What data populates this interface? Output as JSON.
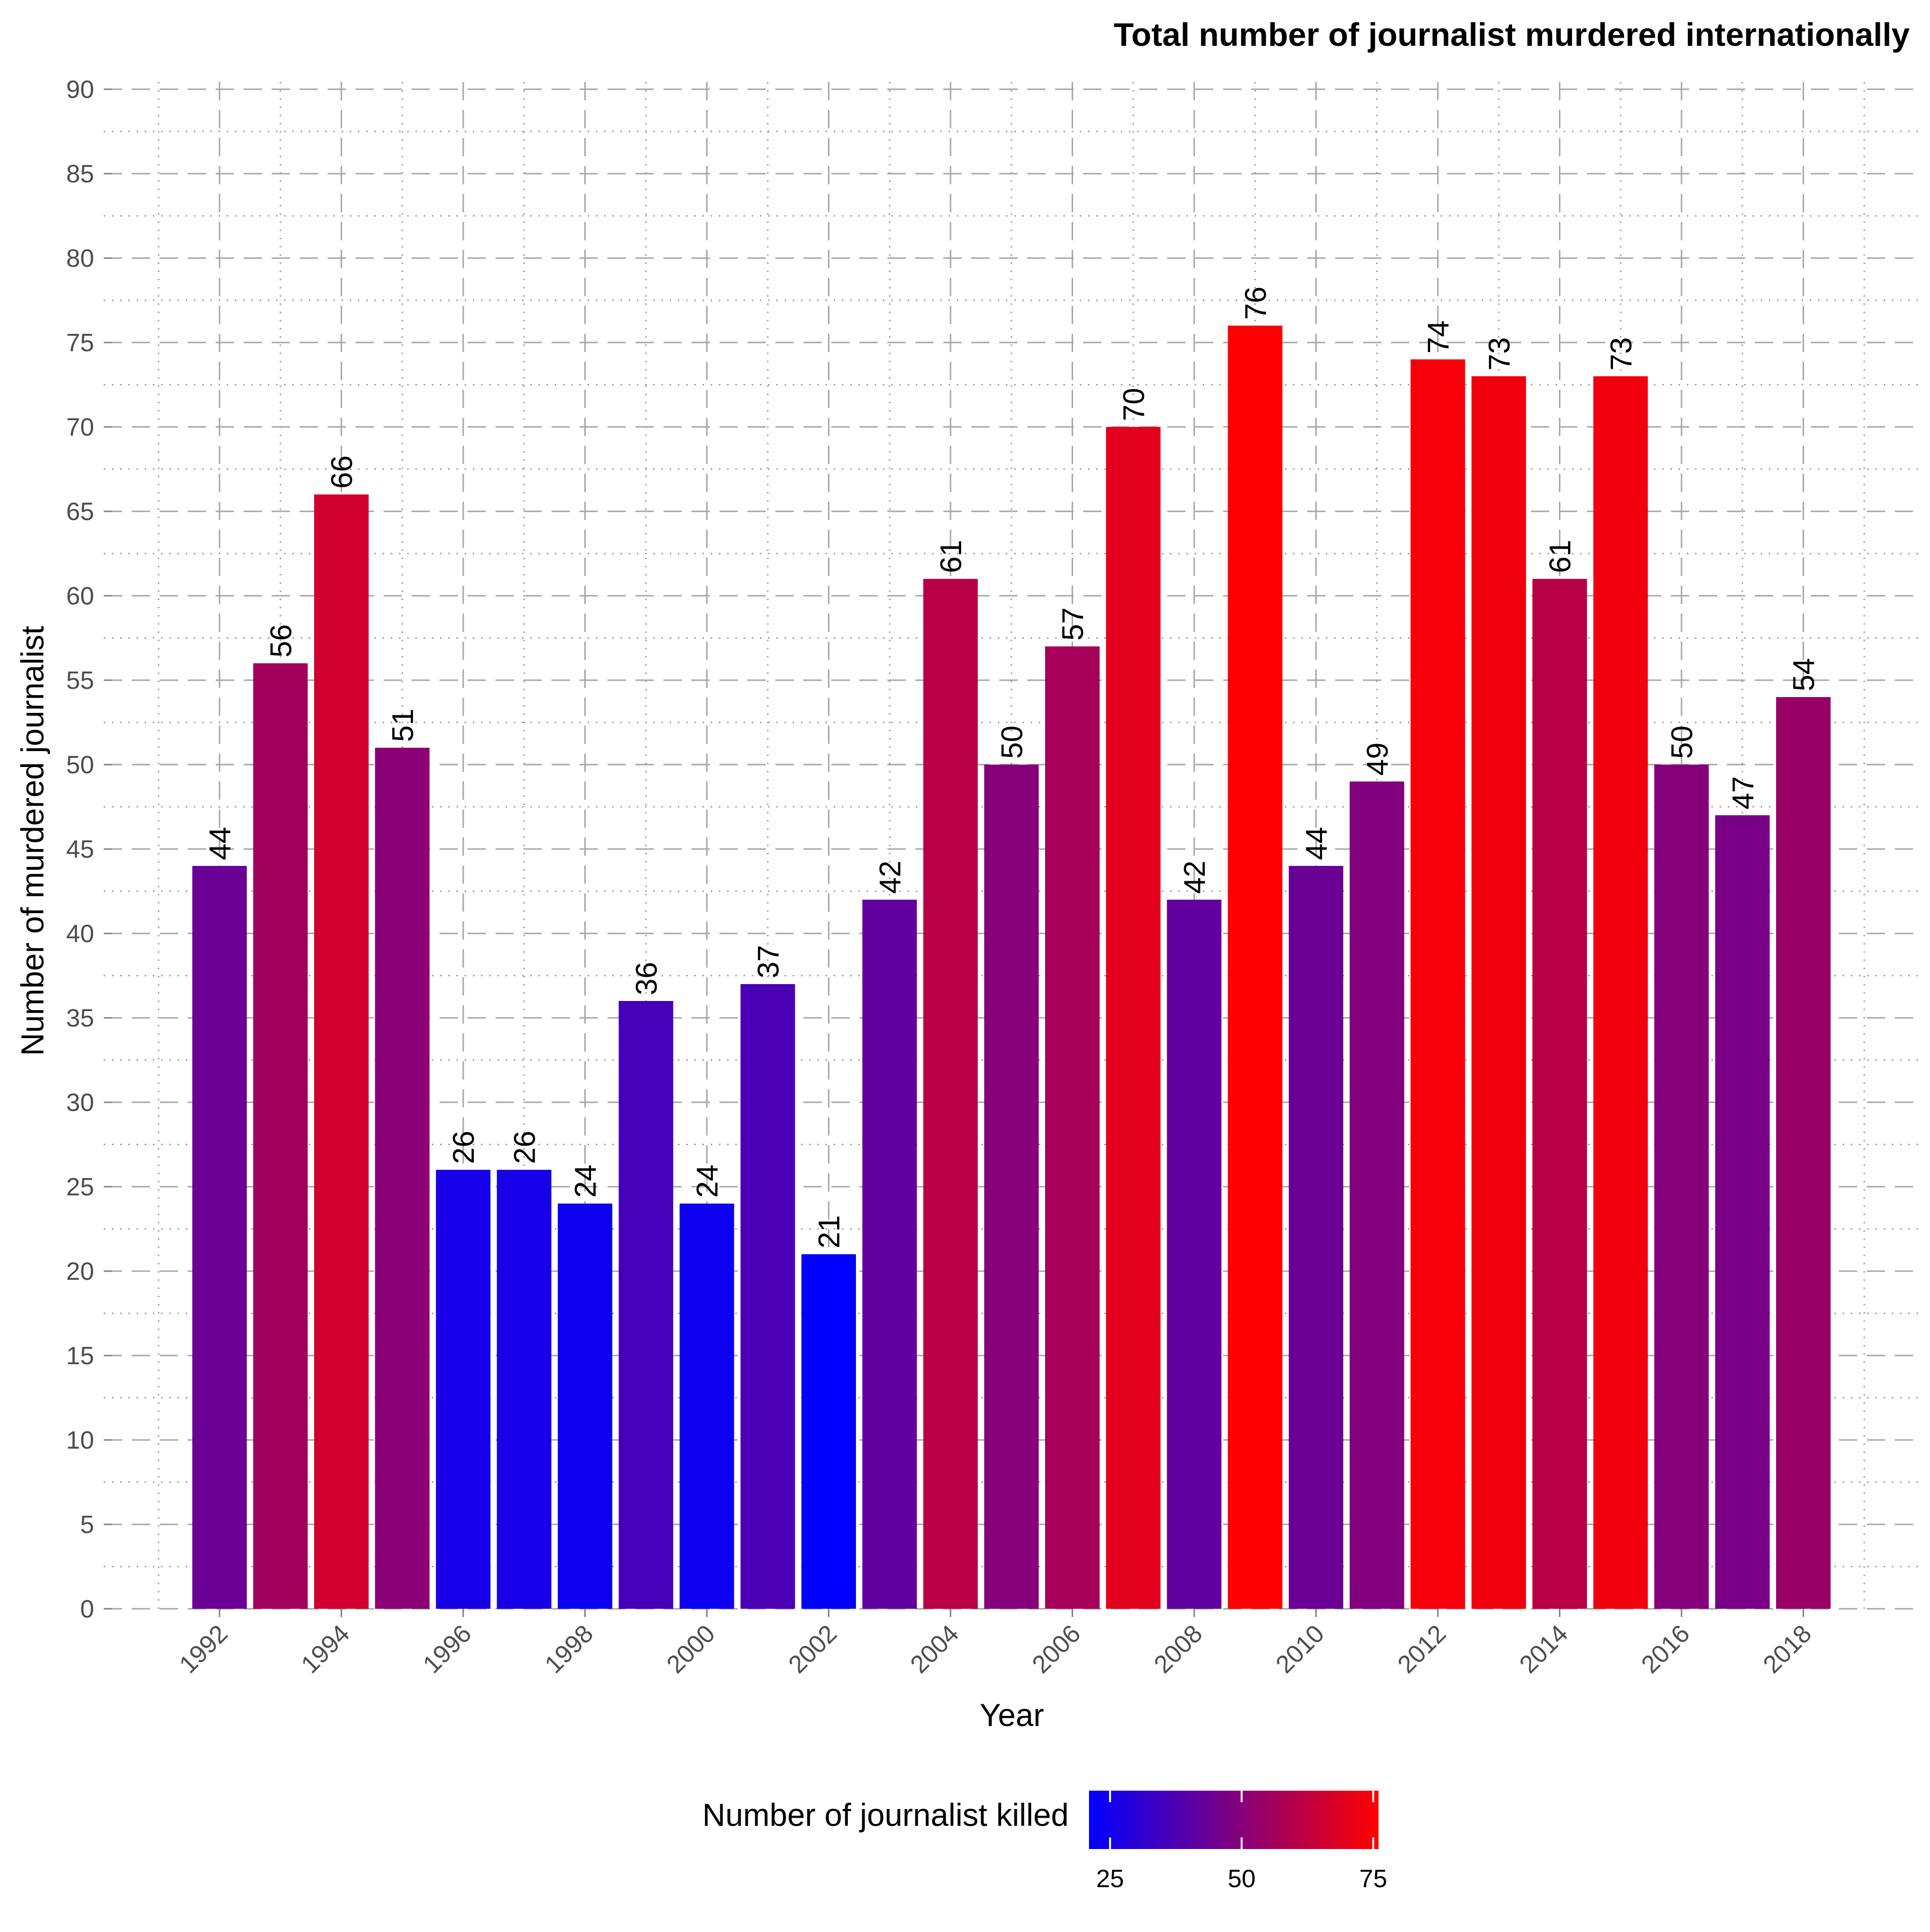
{
  "chart_data": {
    "type": "bar",
    "title": "Total number of journalist murdered internationally",
    "xlabel": "Year",
    "ylabel": "Number of murdered journalist",
    "ylim": [
      0,
      90
    ],
    "y_ticks": [
      0,
      5,
      10,
      15,
      20,
      25,
      30,
      35,
      40,
      45,
      50,
      55,
      60,
      65,
      70,
      75,
      80,
      85,
      90
    ],
    "x_tick_labels": [
      "1992",
      "1994",
      "1996",
      "1998",
      "2000",
      "2002",
      "2004",
      "2006",
      "2008",
      "2010",
      "2012",
      "2014",
      "2016",
      "2018"
    ],
    "categories": [
      1992,
      1993,
      1994,
      1995,
      1996,
      1997,
      1998,
      1999,
      2000,
      2001,
      2002,
      2003,
      2004,
      2005,
      2006,
      2007,
      2008,
      2009,
      2010,
      2011,
      2012,
      2013,
      2014,
      2015,
      2016,
      2017,
      2018
    ],
    "values": [
      44,
      56,
      66,
      51,
      26,
      26,
      24,
      36,
      24,
      37,
      21,
      42,
      61,
      50,
      57,
      70,
      42,
      76,
      44,
      49,
      74,
      73,
      61,
      73,
      50,
      47,
      54
    ],
    "grid": true,
    "color_scale": {
      "low_color": "#0000ff",
      "high_color": "#ff0000",
      "min": 21,
      "max": 76
    },
    "legend": {
      "title": "Number of journalist killed",
      "ticks": [
        25,
        50,
        75
      ],
      "position": "bottom"
    }
  }
}
